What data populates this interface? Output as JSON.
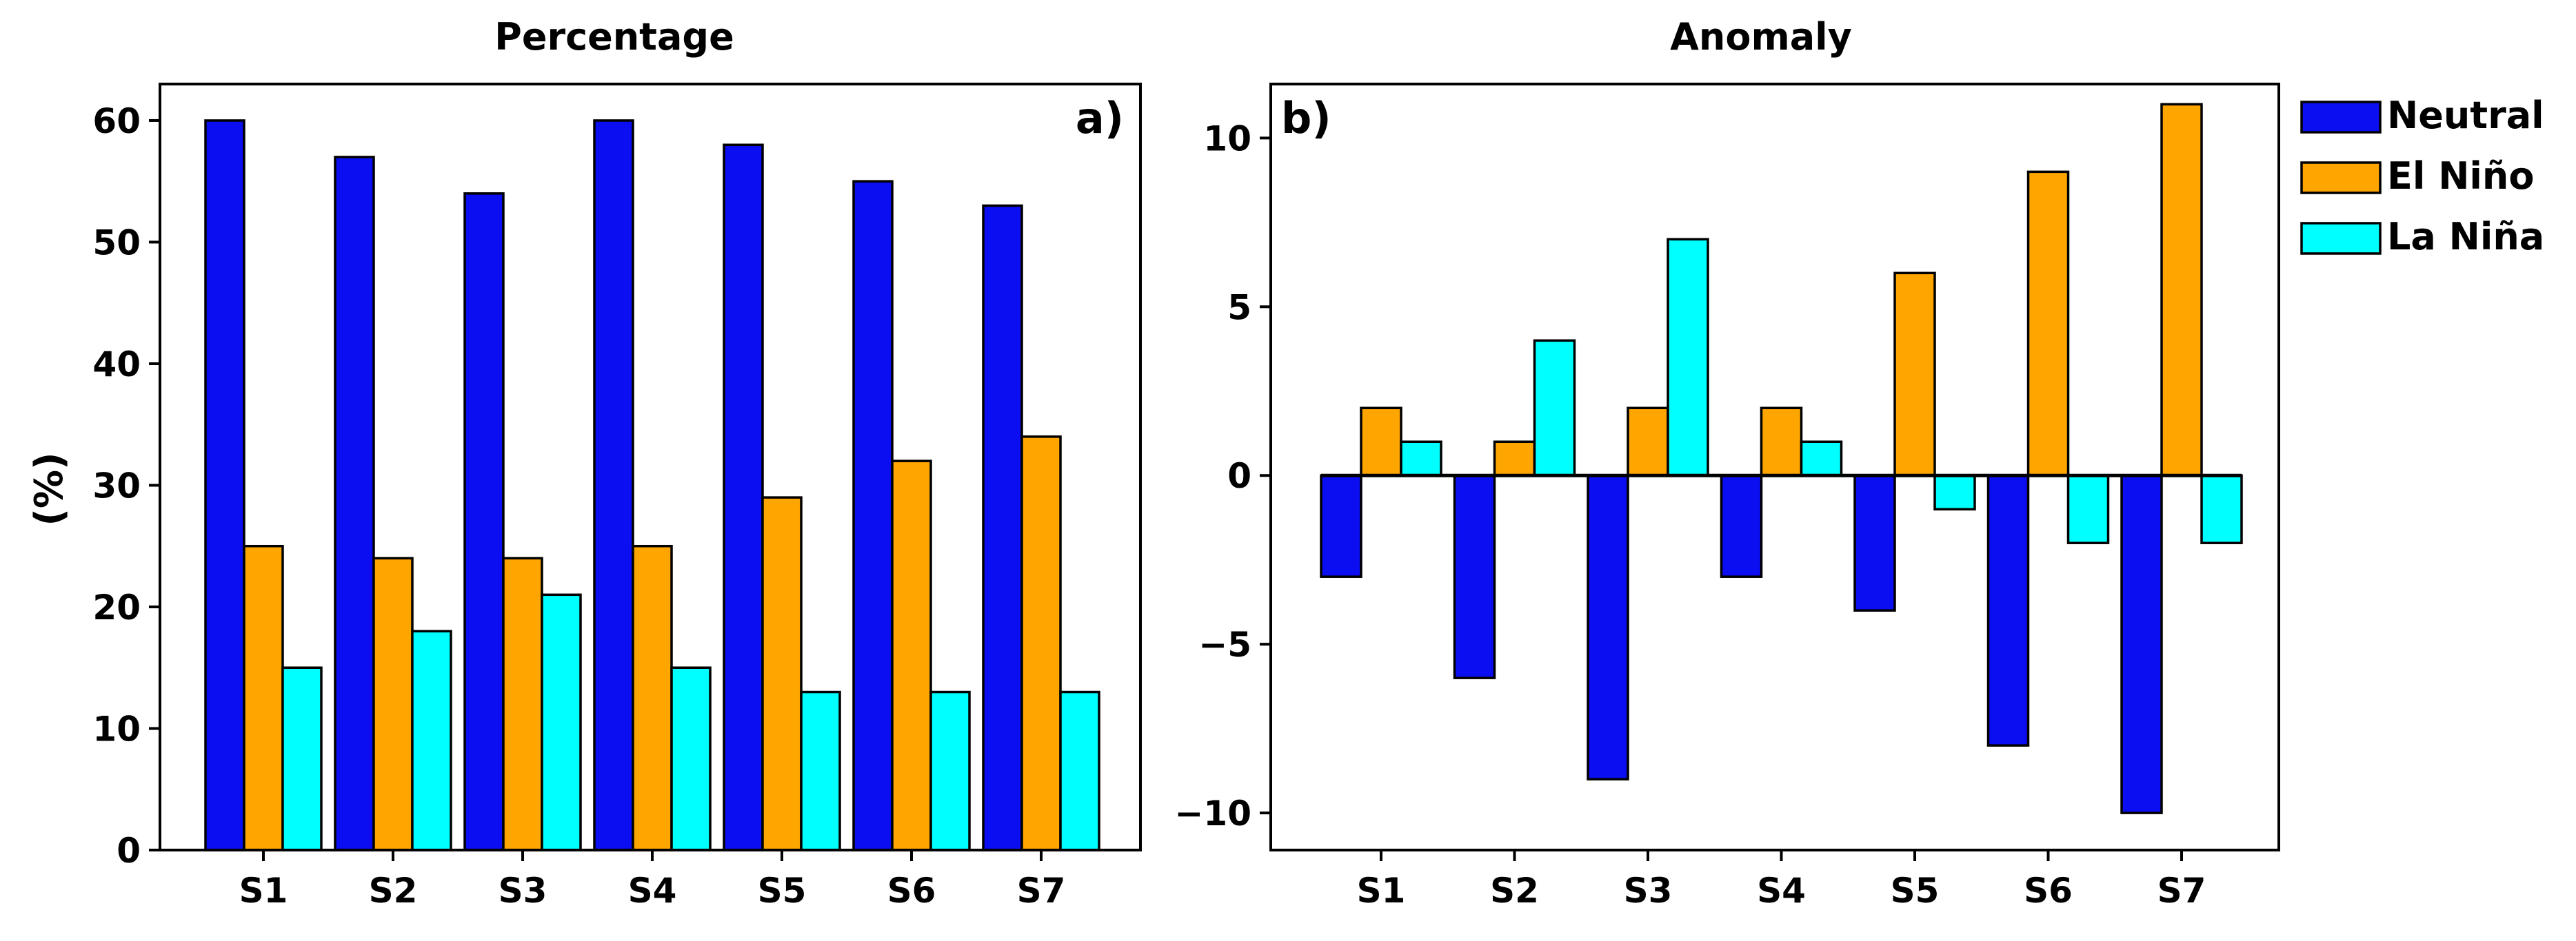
{
  "colors": {
    "Neutral": "#0b0ef0",
    "El Niño": "#ffa500",
    "La Niña": "#00ffff"
  },
  "legend": {
    "entries": [
      "Neutral",
      "El Niño",
      "La Niña"
    ],
    "placement": "right of panel b, top"
  },
  "chart_data": [
    {
      "type": "bar",
      "title": "Percentage",
      "panel_label": "a)",
      "xlabel": "",
      "ylabel": "(%)",
      "categories": [
        "S1",
        "S2",
        "S3",
        "S4",
        "S5",
        "S6",
        "S7"
      ],
      "ylim": [
        0,
        63
      ],
      "yticks": [
        0,
        10,
        20,
        30,
        40,
        50,
        60
      ],
      "ytick_labels": [
        "0",
        "10",
        "20",
        "30",
        "40",
        "50",
        "60"
      ],
      "series": [
        {
          "name": "Neutral",
          "values": [
            60,
            57,
            54,
            60,
            58,
            55,
            53
          ]
        },
        {
          "name": "El Niño",
          "values": [
            25,
            24,
            24,
            25,
            29,
            32,
            34
          ]
        },
        {
          "name": "La Niña",
          "values": [
            15,
            18,
            21,
            15,
            13,
            13,
            13
          ]
        }
      ]
    },
    {
      "type": "bar",
      "title": "Anomaly",
      "panel_label": "b)",
      "xlabel": "",
      "ylabel": "",
      "categories": [
        "S1",
        "S2",
        "S3",
        "S4",
        "S5",
        "S6",
        "S7"
      ],
      "ylim": [
        -11.1,
        11.6
      ],
      "yticks": [
        -10,
        -5,
        0,
        5,
        10
      ],
      "ytick_labels": [
        "−10",
        "−5",
        "0",
        "5",
        "10"
      ],
      "zero_line": true,
      "series": [
        {
          "name": "Neutral",
          "values": [
            -3,
            -6,
            -9,
            -3,
            -4,
            -8,
            -10
          ]
        },
        {
          "name": "El Niño",
          "values": [
            2,
            1,
            2,
            2,
            6,
            9,
            11
          ]
        },
        {
          "name": "La Niña",
          "values": [
            1,
            4,
            7,
            1,
            -1,
            -2,
            -2
          ]
        }
      ]
    }
  ]
}
